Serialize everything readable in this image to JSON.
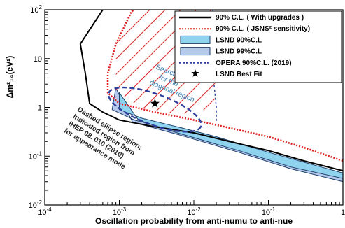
{
  "chart_data": {
    "type": "line",
    "title": "",
    "xlabel": "Oscillation probability from anti-numu to anti-nue",
    "ylabel": "Δm²₁₄(eV²)",
    "xscale": "log",
    "yscale": "log",
    "xlim": [
      0.0001,
      1
    ],
    "ylim": [
      0.01,
      100
    ],
    "x_ticks": [
      "10^-4",
      "10^-3",
      "10^-2",
      "10^-1",
      "1"
    ],
    "y_ticks": [
      "10^-2",
      "10^-1",
      "1",
      "10",
      "10^2"
    ],
    "legend_position": "top-right",
    "series": [
      {
        "name": "90% C.L. ( With upgrades )",
        "color": "#000000",
        "style": "solid",
        "x": [
          0.0006,
          0.0003,
          0.00035,
          0.0004,
          0.0006,
          0.001,
          0.003,
          0.01,
          0.03,
          0.1,
          0.3,
          1
        ],
        "y": [
          100,
          20,
          5,
          1.2,
          0.8,
          0.55,
          0.4,
          0.3,
          0.2,
          0.13,
          0.08,
          0.05
        ]
      },
      {
        "name": "90% C.L. ( JSNS² sensitivity)",
        "color": "#e02020",
        "style": "dotted",
        "x": [
          0.0015,
          0.0009,
          0.0007,
          0.0007,
          0.001,
          0.003,
          0.01,
          0.03,
          0.1,
          0.3,
          1
        ],
        "y": [
          100,
          20,
          5,
          2,
          1.2,
          0.8,
          0.55,
          0.38,
          0.25,
          0.15,
          0.08
        ]
      },
      {
        "name": "LSND 90%C.L",
        "color": "#8fd3ef",
        "style": "fill",
        "x": [
          0.001,
          0.001,
          0.002,
          0.006,
          0.02,
          0.1,
          1,
          1,
          0.2,
          0.04,
          0.006,
          0.0018
        ],
        "y": [
          2,
          0.9,
          0.6,
          0.4,
          0.25,
          0.12,
          0.045,
          0.035,
          0.06,
          0.13,
          0.3,
          0.55
        ]
      },
      {
        "name": "LSND 99%C.L",
        "color": "#b5c9ec",
        "style": "fill",
        "x": [
          0.0009,
          0.0008,
          0.0016,
          0.005,
          0.02,
          0.1,
          1,
          1,
          0.2,
          0.04,
          0.006,
          0.0015
        ],
        "y": [
          2.5,
          0.9,
          0.55,
          0.35,
          0.22,
          0.11,
          0.04,
          0.03,
          0.055,
          0.12,
          0.28,
          0.5
        ]
      },
      {
        "name": "OPERA 90%C.L. (2019)",
        "color": "#2d3e9c",
        "style": "dashed",
        "x": [
          0.018,
          0.018,
          0.02,
          0.02
        ],
        "y": [
          100,
          5,
          1,
          0.5
        ]
      }
    ],
    "best_fit": {
      "name": "LSND Best Fit",
      "x": 0.003,
      "y": 1.2
    },
    "annotations": [
      "Searching for the diagonal region",
      "Dashed ellipse region; Indicated region from IHEP 08. 010 (2010) for appearance mode"
    ]
  },
  "legend": [
    {
      "label": "90% C.L. (  With upgrades )",
      "kind": "line",
      "color": "#000000"
    },
    {
      "label": "90% C.L. ( JSNS² sensitivity)",
      "kind": "dotted",
      "color": "#e02020"
    },
    {
      "label": "LSND 90%C.L",
      "kind": "box",
      "color": "#8fd3ef"
    },
    {
      "label": "LSND 99%C.L",
      "kind": "box",
      "color": "#b5c9ec"
    },
    {
      "label": "OPERA 90%C.L. (2019)",
      "kind": "dashed",
      "color": "#2d3e9c"
    },
    {
      "label": "LSND Best Fit",
      "kind": "star",
      "color": "#000000"
    }
  ],
  "annotation_search": [
    "Searching",
    "for the",
    "diagonal region"
  ],
  "annotation_ellipse": [
    "Dashed ellipse region;",
    "Indicated region from",
    "IHEP 08. 010 (2010)",
    "for appearance mode"
  ]
}
